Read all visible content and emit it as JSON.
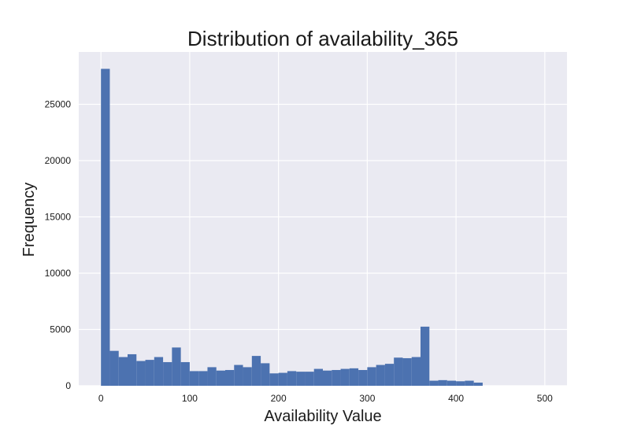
{
  "chart_data": {
    "type": "bar",
    "title": "Distribution of availability_365",
    "xlabel": "Availability Value",
    "ylabel": "Frequency",
    "xlim": [
      -25,
      525
    ],
    "ylim": [
      0,
      29650
    ],
    "xticks": [
      0,
      100,
      200,
      300,
      400,
      500
    ],
    "yticks": [
      0,
      5000,
      10000,
      15000,
      20000,
      25000
    ],
    "grid": true,
    "bin_start": 0,
    "bin_width": 10,
    "values": [
      28150,
      3100,
      2550,
      2800,
      2200,
      2300,
      2550,
      2100,
      3400,
      2100,
      1300,
      1300,
      1650,
      1350,
      1400,
      1850,
      1650,
      2650,
      2000,
      1100,
      1150,
      1300,
      1250,
      1250,
      1500,
      1350,
      1400,
      1500,
      1550,
      1400,
      1650,
      1850,
      1950,
      2500,
      2450,
      2550,
      5250,
      450,
      500,
      450,
      400,
      450,
      280
    ],
    "colors": {
      "bar": "#4c72b0",
      "plot_background": "#eaeaf2",
      "grid": "#ffffff",
      "figure_background": "#ffffff"
    }
  }
}
